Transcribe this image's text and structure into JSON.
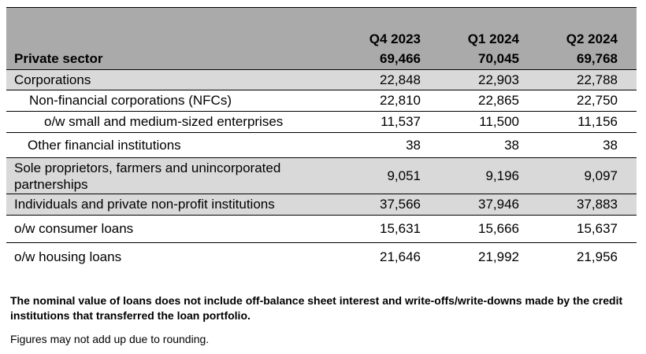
{
  "columns": [
    "Q4 2023",
    "Q1 2024",
    "Q2 2024"
  ],
  "rows": [
    {
      "label": "Private sector",
      "values": [
        "69,466",
        "70,045",
        "69,768"
      ]
    },
    {
      "label": "Corporations",
      "values": [
        "22,848",
        "22,903",
        "22,788"
      ]
    },
    {
      "label": "Non-financial corporations (NFCs)",
      "values": [
        "22,810",
        "22,865",
        "22,750"
      ]
    },
    {
      "label": "o/w small and medium-sized enterprises",
      "values": [
        "11,537",
        "11,500",
        "11,156"
      ]
    },
    {
      "label": "Other financial institutions",
      "values": [
        "38",
        "38",
        "38"
      ]
    },
    {
      "label": "Sole proprietors, farmers and unincorporated partnerships",
      "values": [
        "9,051",
        "9,196",
        "9,097"
      ]
    },
    {
      "label": "Individuals and private non-profit institutions",
      "values": [
        "37,566",
        "37,946",
        "37,883"
      ]
    },
    {
      "label": "o/w consumer loans",
      "values": [
        "15,631",
        "15,666",
        "15,637"
      ]
    },
    {
      "label": "o/w housing loans",
      "values": [
        "21,646",
        "21,992",
        "21,956"
      ]
    }
  ],
  "notes": {
    "bold": "The nominal value of loans does not include off-balance sheet interest and write-offs/write-downs made by the credit institutions that transferred the loan portfolio.",
    "plain": "Figures may not add up due to rounding."
  },
  "colors": {
    "dark_band": "#aaaaaa",
    "light_band": "#d9d9d9"
  }
}
